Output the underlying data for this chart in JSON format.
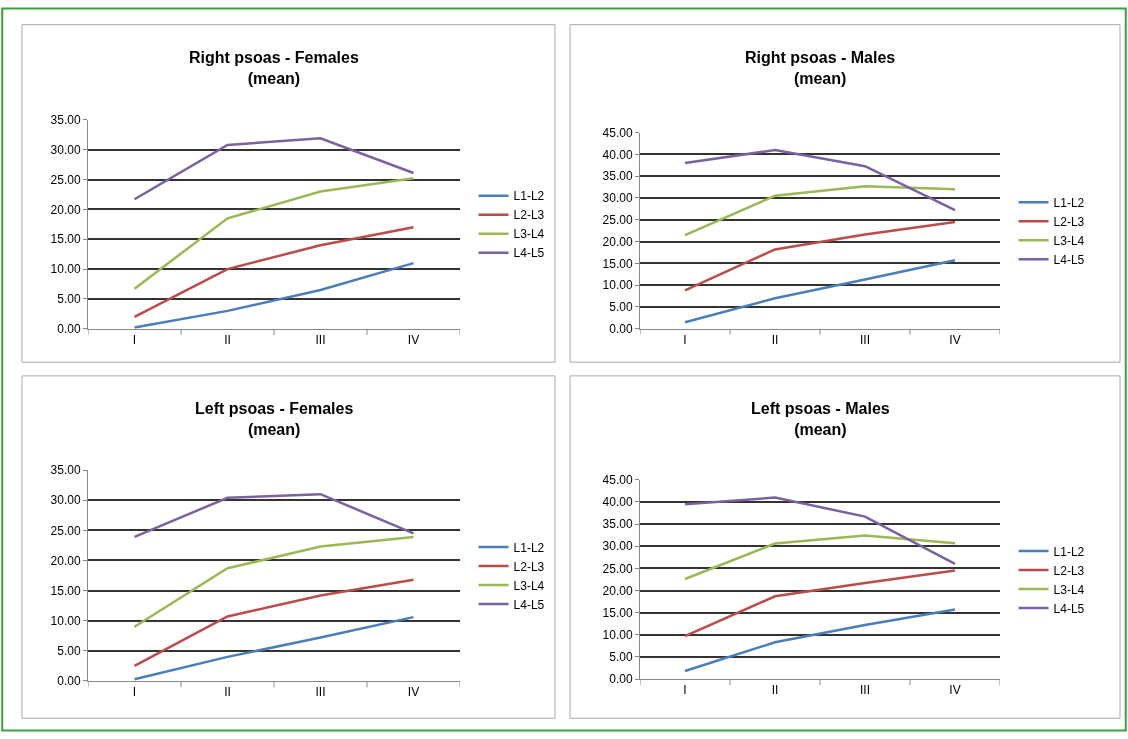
{
  "chart_data": [
    {
      "type": "line",
      "title": "Right psoas - Females\n(mean)",
      "categories": [
        "I",
        "II",
        "III",
        "IV"
      ],
      "ylim": [
        0,
        35
      ],
      "yticks": [
        {
          "value": 0,
          "label": "0.00"
        },
        {
          "value": 5,
          "label": "5.00"
        },
        {
          "value": 10,
          "label": "10.00"
        },
        {
          "value": 15,
          "label": "15.00"
        },
        {
          "value": 20,
          "label": "20.00"
        },
        {
          "value": 25,
          "label": "25.00"
        },
        {
          "value": 30,
          "label": "30.00"
        },
        {
          "value": 35,
          "label": "35.00"
        }
      ],
      "grid": "y",
      "legend": "right",
      "series": [
        {
          "name": "L1-L2",
          "color": "#4a7ebb",
          "values": [
            0.2,
            3,
            6.5,
            11
          ]
        },
        {
          "name": "L2-L3",
          "color": "#be4b48",
          "values": [
            2,
            10,
            14,
            17
          ]
        },
        {
          "name": "L3-L4",
          "color": "#98b954",
          "values": [
            6.7,
            18.5,
            23,
            25.2
          ]
        },
        {
          "name": "L4-L5",
          "color": "#7d60a0",
          "values": [
            21.7,
            30.8,
            31.9,
            26.1
          ]
        }
      ]
    },
    {
      "type": "line",
      "title": "Right psoas - Males\n(mean)",
      "categories": [
        "I",
        "II",
        "III",
        "IV"
      ],
      "ylim": [
        0,
        45
      ],
      "yticks": [
        {
          "value": 0,
          "label": "0.00"
        },
        {
          "value": 5,
          "label": "5.00"
        },
        {
          "value": 10,
          "label": "10.00"
        },
        {
          "value": 15,
          "label": "15.00"
        },
        {
          "value": 20,
          "label": "20.00"
        },
        {
          "value": 25,
          "label": "25.00"
        },
        {
          "value": 30,
          "label": "30.00"
        },
        {
          "value": 35,
          "label": "35.00"
        },
        {
          "value": 40,
          "label": "40.00"
        },
        {
          "value": 45,
          "label": "45.00"
        }
      ],
      "grid": "y",
      "legend": "right",
      "series": [
        {
          "name": "L1-L2",
          "color": "#4a7ebb",
          "values": [
            1.5,
            7,
            11.3,
            15.7
          ]
        },
        {
          "name": "L2-L3",
          "color": "#be4b48",
          "values": [
            8.8,
            18.2,
            21.6,
            24.5
          ]
        },
        {
          "name": "L3-L4",
          "color": "#98b954",
          "values": [
            21.5,
            30.5,
            32.7,
            32
          ]
        },
        {
          "name": "L4-L5",
          "color": "#7d60a0",
          "values": [
            38,
            41,
            37.3,
            27.2
          ]
        }
      ]
    },
    {
      "type": "line",
      "title": "Left psoas - Females\n(mean)",
      "categories": [
        "I",
        "II",
        "III",
        "IV"
      ],
      "ylim": [
        0,
        35
      ],
      "yticks": [
        {
          "value": 0,
          "label": "0.00"
        },
        {
          "value": 5,
          "label": "5.00"
        },
        {
          "value": 10,
          "label": "10.00"
        },
        {
          "value": 15,
          "label": "15.00"
        },
        {
          "value": 20,
          "label": "20.00"
        },
        {
          "value": 25,
          "label": "25.00"
        },
        {
          "value": 30,
          "label": "30.00"
        },
        {
          "value": 35,
          "label": "35.00"
        }
      ],
      "grid": "y",
      "legend": "right",
      "series": [
        {
          "name": "L1-L2",
          "color": "#4a7ebb",
          "values": [
            0.3,
            4,
            7.2,
            10.6
          ]
        },
        {
          "name": "L2-L3",
          "color": "#be4b48",
          "values": [
            2.5,
            10.7,
            14.2,
            16.8
          ]
        },
        {
          "name": "L3-L4",
          "color": "#98b954",
          "values": [
            9,
            18.7,
            22.3,
            23.9
          ]
        },
        {
          "name": "L4-L5",
          "color": "#7d60a0",
          "values": [
            23.9,
            30.4,
            31,
            24.5
          ]
        }
      ]
    },
    {
      "type": "line",
      "title": "Left psoas - Males\n(mean)",
      "categories": [
        "I",
        "II",
        "III",
        "IV"
      ],
      "ylim": [
        0,
        45
      ],
      "yticks": [
        {
          "value": 0,
          "label": "0.00"
        },
        {
          "value": 5,
          "label": "5.00"
        },
        {
          "value": 10,
          "label": "10.00"
        },
        {
          "value": 15,
          "label": "15.00"
        },
        {
          "value": 20,
          "label": "20.00"
        },
        {
          "value": 25,
          "label": "25.00"
        },
        {
          "value": 30,
          "label": "30.00"
        },
        {
          "value": 35,
          "label": "35.00"
        },
        {
          "value": 40,
          "label": "40.00"
        },
        {
          "value": 45,
          "label": "45.00"
        }
      ],
      "grid": "y",
      "legend": "right",
      "series": [
        {
          "name": "L1-L2",
          "color": "#4a7ebb",
          "values": [
            1.8,
            8.3,
            12.2,
            15.7
          ]
        },
        {
          "name": "L2-L3",
          "color": "#be4b48",
          "values": [
            9.7,
            18.7,
            21.7,
            24.5
          ]
        },
        {
          "name": "L3-L4",
          "color": "#98b954",
          "values": [
            22.6,
            30.6,
            32.4,
            30.7
          ]
        },
        {
          "name": "L4-L5",
          "color": "#7d60a0",
          "values": [
            39.5,
            41,
            36.7,
            26
          ]
        }
      ]
    }
  ]
}
